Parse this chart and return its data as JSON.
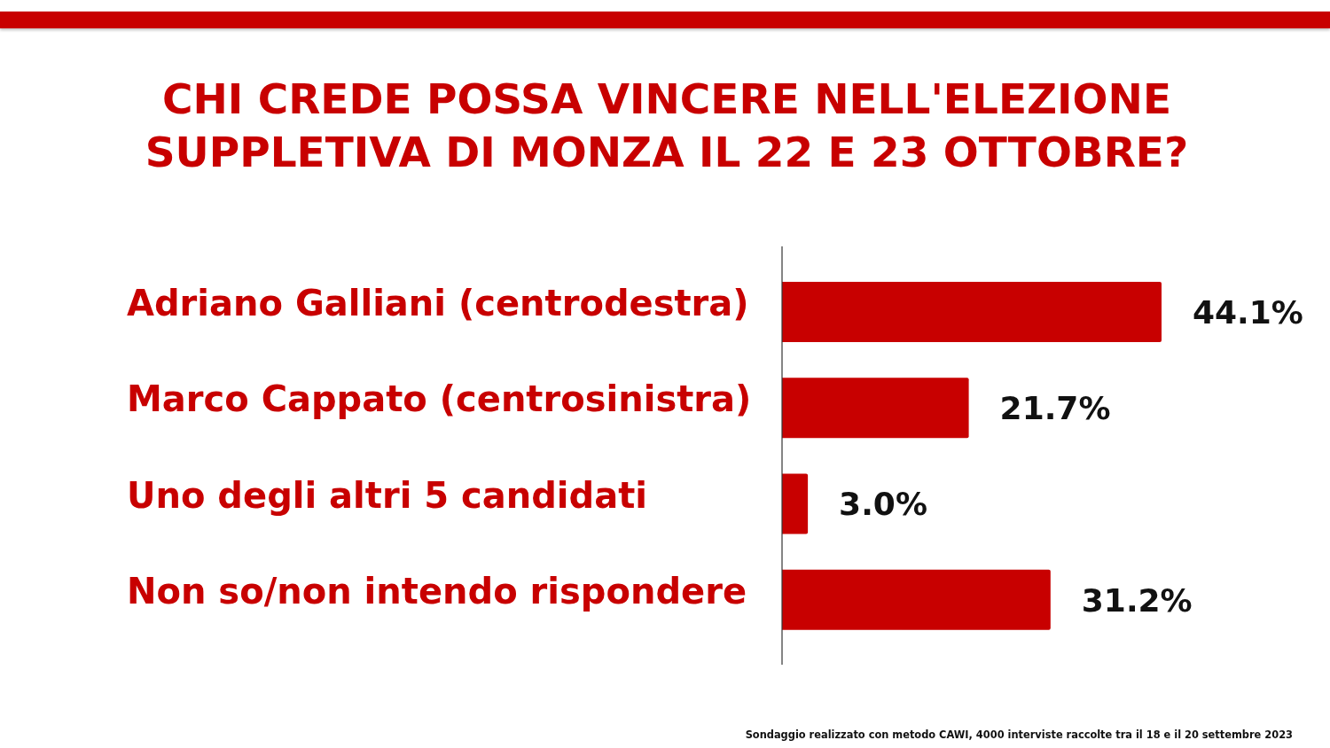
{
  "chart_data": {
    "type": "bar",
    "orientation": "horizontal",
    "title": "CHI CREDE POSSA VINCERE NELL'ELEZIONE SUPPLETIVA DI MONZA IL 22 E 23 OTTOBRE?",
    "categories": [
      "Adriano Galliani (centrodestra)",
      "Marco Cappato (centrosinistra)",
      "Uno degli altri 5 candidati",
      "Non so/non intendo rispondere"
    ],
    "values": [
      44.1,
      21.7,
      3.0,
      31.2
    ],
    "color": "#c80000",
    "value_labels": [
      "44.1%",
      "21.7%",
      "3.0%",
      "31.2%"
    ],
    "tick_labels": "y",
    "annotations": [
      "Sondaggio realizzato con metodo CAWI, 4000 interviste raccolte tra il 18 e il 20 settembre 2023"
    ]
  }
}
